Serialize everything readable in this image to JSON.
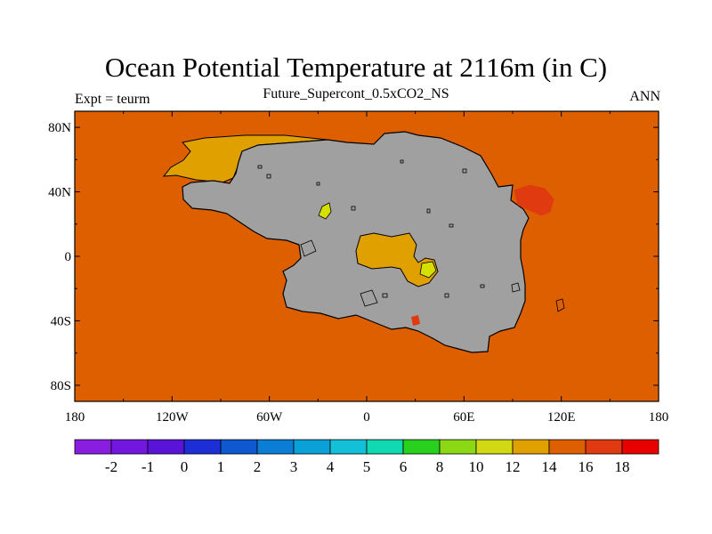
{
  "title": "Ocean Potential Temperature at 2116m (in C)",
  "subtitle": "Future_Supercont_0.5xCO2_NS",
  "left_label": "Expt = teurm",
  "right_label": "ANN",
  "colors": {
    "ocean_background": "#dd5f00",
    "land": "#a0a0a0",
    "coast": "#000000",
    "warm_anomaly": "#e03a10",
    "cool_patch": "#e0a000",
    "cold_spot": "#d6e000"
  },
  "chart_data": {
    "type": "heatmap",
    "xlabel": "",
    "ylabel": "",
    "xlim": [
      -180,
      180
    ],
    "ylim": [
      -90,
      90
    ],
    "x_ticks": [
      {
        "value": -180,
        "label": "180"
      },
      {
        "value": -120,
        "label": "120W"
      },
      {
        "value": -60,
        "label": "60W"
      },
      {
        "value": 0,
        "label": "0"
      },
      {
        "value": 60,
        "label": "60E"
      },
      {
        "value": 120,
        "label": "120E"
      },
      {
        "value": 180,
        "label": "180"
      }
    ],
    "y_ticks": [
      {
        "value": 80,
        "label": "80N"
      },
      {
        "value": 40,
        "label": "40N"
      },
      {
        "value": 0,
        "label": "0"
      },
      {
        "value": -40,
        "label": "40S"
      },
      {
        "value": -80,
        "label": "80S"
      }
    ],
    "colorbar": {
      "labels": [
        "-2",
        "-1",
        "0",
        "1",
        "2",
        "3",
        "4",
        "5",
        "6",
        "8",
        "10",
        "12",
        "14",
        "16",
        "18"
      ],
      "colors": [
        "#8a1ee0",
        "#7316e0",
        "#5a14d8",
        "#1c2ed6",
        "#0e58d0",
        "#0a7ed4",
        "#0aa0d8",
        "#12c0d8",
        "#10d8b0",
        "#28d21c",
        "#8cd814",
        "#d2d812",
        "#e0a000",
        "#dd5f00",
        "#e03a10",
        "#e80000"
      ]
    },
    "regions": [
      {
        "name": "ocean",
        "value_range": [
          14,
          16
        ]
      },
      {
        "name": "land",
        "value_range": null
      },
      {
        "name": "north-ocean-patch",
        "value_range": [
          12,
          14
        ]
      },
      {
        "name": "central-sea",
        "value_range": [
          12,
          14
        ]
      },
      {
        "name": "east-anomaly",
        "value_range": [
          16,
          18
        ]
      },
      {
        "name": "inland-spots",
        "value_range": [
          10,
          12
        ]
      }
    ]
  }
}
